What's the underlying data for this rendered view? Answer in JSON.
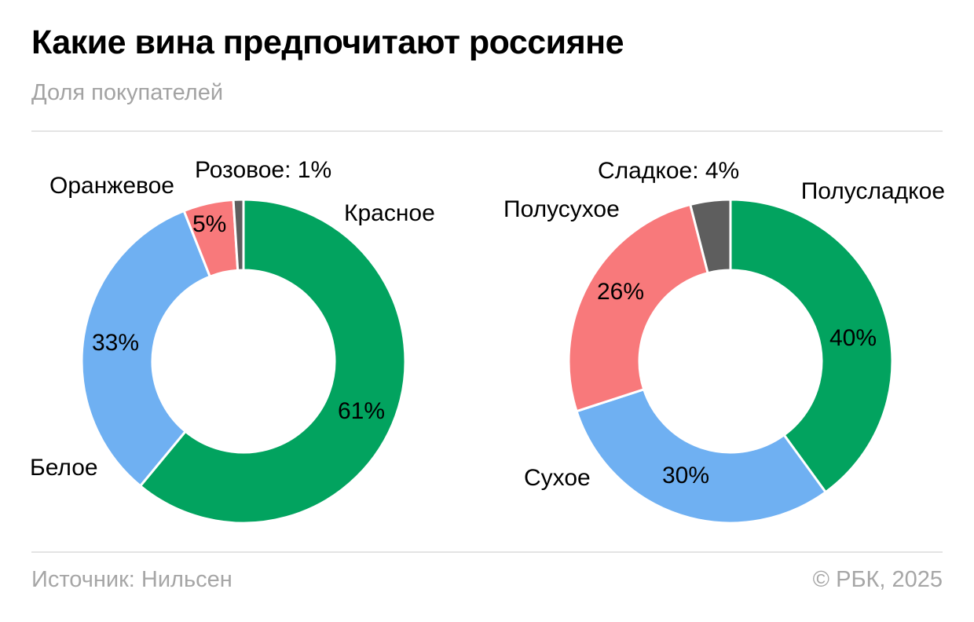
{
  "header": {
    "title": "Какие вина предпочитают россияне",
    "subtitle": "Доля покупателей"
  },
  "footer": {
    "source": "Источник: Нильсен",
    "copyright": "© РБК, 2025"
  },
  "chart_data": [
    {
      "type": "pie",
      "variant": "donut",
      "units": "%",
      "start_angle_deg": 0,
      "direction": "clockwise",
      "slices": [
        {
          "label": "Красное",
          "value": 61,
          "value_label": "61%",
          "color": "#02a35f"
        },
        {
          "label": "Белое",
          "value": 33,
          "value_label": "33%",
          "color": "#6fb0f2"
        },
        {
          "label": "Оранжевое",
          "value": 5,
          "value_label": "5%",
          "color": "#f8797b"
        },
        {
          "label": "Розовое",
          "value": 1,
          "callout": "Розовое: 1%",
          "color": "#5e5e5e"
        }
      ]
    },
    {
      "type": "pie",
      "variant": "donut",
      "units": "%",
      "start_angle_deg": 0,
      "direction": "clockwise",
      "slices": [
        {
          "label": "Полусладкое",
          "value": 40,
          "value_label": "40%",
          "color": "#02a35f"
        },
        {
          "label": "Сухое",
          "value": 30,
          "value_label": "30%",
          "color": "#6fb0f2"
        },
        {
          "label": "Полусухое",
          "value": 26,
          "value_label": "26%",
          "color": "#f8797b"
        },
        {
          "label": "Сладкое",
          "value": 4,
          "callout": "Сладкое: 4%",
          "color": "#5e5e5e"
        }
      ]
    }
  ]
}
